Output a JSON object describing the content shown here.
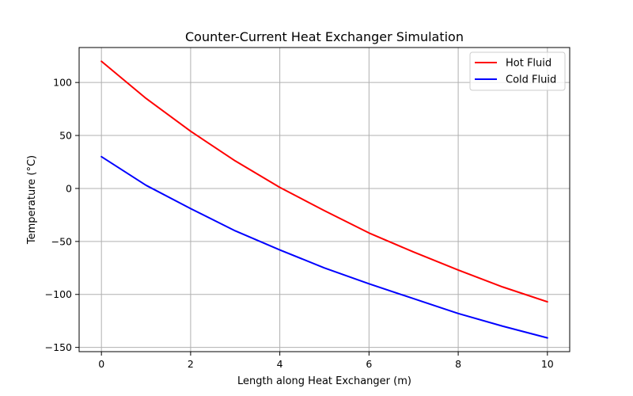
{
  "chart_data": {
    "type": "line",
    "title": "Counter-Current Heat Exchanger Simulation",
    "xlabel": "Length along Heat Exchanger (m)",
    "ylabel": "Temperature (°C)",
    "xlim": [
      -0.5,
      10.5
    ],
    "ylim": [
      -154,
      133
    ],
    "xticks": [
      0,
      2,
      4,
      6,
      8,
      10
    ],
    "yticks": [
      -150,
      -100,
      -50,
      0,
      50,
      100
    ],
    "xtick_labels": [
      "0",
      "2",
      "4",
      "6",
      "8",
      "10"
    ],
    "ytick_labels": [
      "−150",
      "−100",
      "−50",
      "0",
      "50",
      "100"
    ],
    "grid": true,
    "legend_position": "upper right",
    "x": [
      0,
      1,
      2,
      3,
      4,
      5,
      6,
      7,
      8,
      9,
      10
    ],
    "series": [
      {
        "name": "Hot Fluid",
        "color": "#ff0000",
        "values": [
          120,
          85,
          54,
          26,
          1,
          -21,
          -42,
          -60,
          -77,
          -93,
          -107
        ]
      },
      {
        "name": "Cold Fluid",
        "color": "#0000ff",
        "values": [
          30,
          3,
          -19,
          -40,
          -58,
          -75,
          -90,
          -104,
          -118,
          -130,
          -141
        ]
      }
    ]
  }
}
